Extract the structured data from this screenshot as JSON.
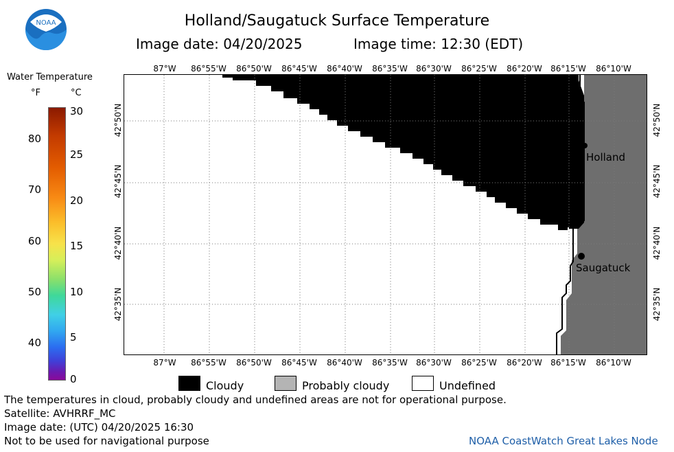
{
  "header": {
    "title": "Holland/Saugatuck Surface Temperature",
    "image_date": "Image date: 04/20/2025",
    "image_time": "Image time: 12:30 (EDT)",
    "logo_text": "NOAA"
  },
  "legend": {
    "title": "Water Temperature",
    "unit_f": "°F",
    "unit_c": "°C",
    "f_ticks": [
      "80",
      "70",
      "60",
      "50",
      "40"
    ],
    "c_ticks": [
      "30",
      "25",
      "20",
      "15",
      "10",
      "5",
      "0"
    ]
  },
  "map": {
    "lon_labels": [
      "87°W",
      "86°55'W",
      "86°50'W",
      "86°45'W",
      "86°40'W",
      "86°35'W",
      "86°30'W",
      "86°25'W",
      "86°20'W",
      "86°15'W",
      "86°10'W"
    ],
    "lat_labels": [
      "42°50'N",
      "42°45'N",
      "42°40'N",
      "42°35'N"
    ],
    "cities": [
      "Holland",
      "Saugatuck"
    ],
    "colors": {
      "cloudy": "#000000",
      "land": "#6e6e6e",
      "undefined": "#ffffff",
      "grid": "#7a7a7a"
    }
  },
  "key": {
    "cloudy": "Cloudy",
    "probably_cloudy": "Probably cloudy",
    "undefined": "Undefined",
    "probably_cloudy_color": "#b4b4b4"
  },
  "footer": {
    "line1": "The temperatures in cloud, probably cloudy and undefined areas are not for operational purpose.",
    "line2": "Satellite: AVHRRF_MC",
    "line3": "Image date: (UTC) 04/20/2025  16:30",
    "line4": "Not to be used for navigational purpose",
    "credit": "NOAA CoastWatch Great Lakes Node"
  }
}
